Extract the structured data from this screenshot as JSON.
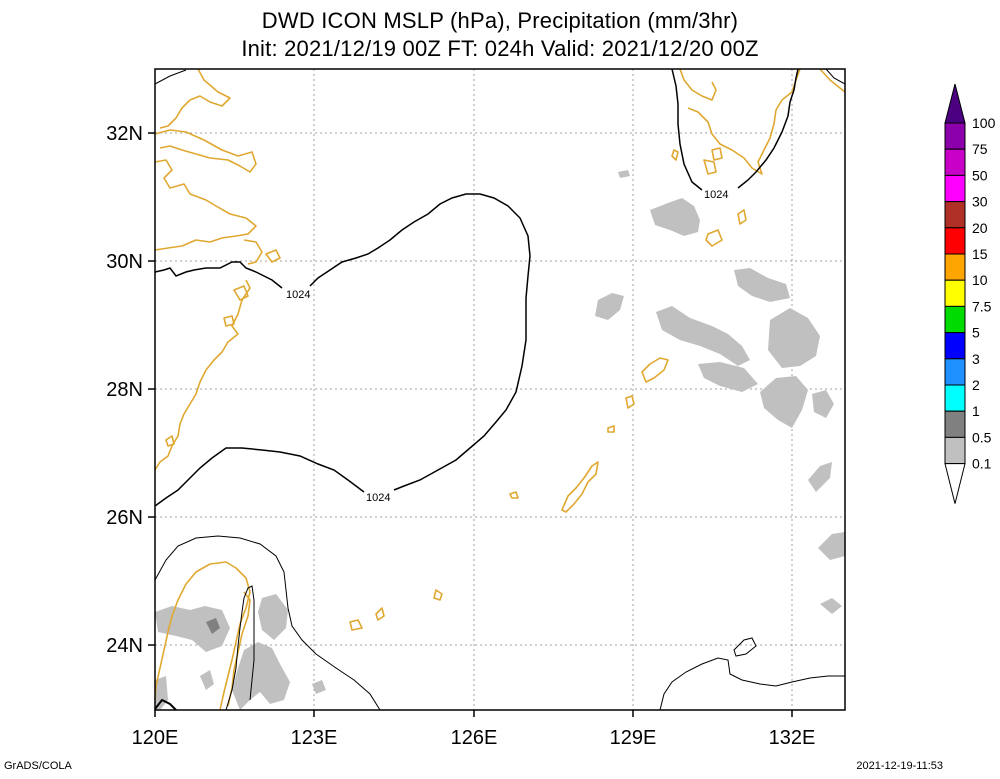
{
  "header": {
    "title_line1": "DWD ICON MSLP (hPa), Precipitation (mm/3hr)",
    "title_line2": "Init: 2021/12/19 00Z  FT: 024h  Valid: 2021/12/20 00Z"
  },
  "map": {
    "lon_labels": [
      "120E",
      "123E",
      "126E",
      "129E",
      "132E"
    ],
    "lat_labels": [
      "32N",
      "30N",
      "28N",
      "26N",
      "24N"
    ],
    "isobar_label": "1024",
    "coastline_color": "#e0a830",
    "isobar_color": "#000000",
    "precip_light_color": "#c0c0c0",
    "precip_heavy_color": "#808080"
  },
  "colorbar": {
    "labels": [
      "100",
      "75",
      "50",
      "30",
      "20",
      "15",
      "10",
      "7.5",
      "5",
      "3",
      "2",
      "1",
      "0.5",
      "0.1"
    ],
    "colors": [
      "#4b0082",
      "#8b00aa",
      "#c800c8",
      "#ff00ff",
      "#b03028",
      "#ff0000",
      "#ffa500",
      "#ffff00",
      "#00dc00",
      "#0000ff",
      "#1e90ff",
      "#00ffff",
      "#808080",
      "#c0c0c0",
      "#ffffff"
    ]
  },
  "footer": {
    "left": "GrADS/COLA",
    "right": "2021-12-19-11:53"
  }
}
